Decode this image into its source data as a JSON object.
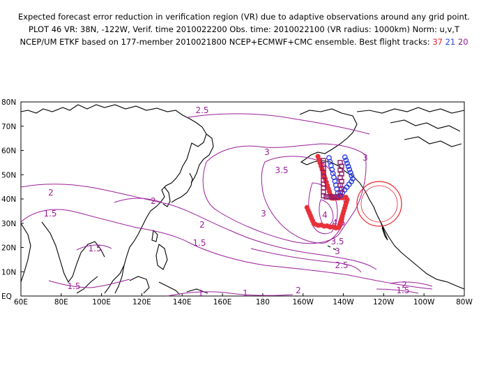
{
  "header": {
    "line1": "Expected forecast error reduction in verification region (VR) due to adaptive observations around any grid point.",
    "line2": "PLOT 46 VR: 38N, -122W, Verif. time 2010022200 Obs. time: 2010022100 (VR radius: 1000km) Norm: u,v,T",
    "line3_prefix": "NCEP/UM ETKF based on 177-member 2010021800 NCEP+ECMWF+CMC ensemble. Best flight tracks:",
    "track_red": "37",
    "track_blue": "21",
    "track_purple": "20"
  },
  "map": {
    "lat_labels": [
      "80N",
      "70N",
      "60N",
      "50N",
      "40N",
      "30N",
      "20N",
      "10N",
      "EQ"
    ],
    "lon_labels": [
      "60E",
      "80E",
      "100E",
      "120E",
      "140E",
      "160E",
      "180",
      "160W",
      "140W",
      "120W",
      "100W",
      "80W"
    ],
    "contour_labels": [
      "2.5",
      "3",
      "3.5",
      "3",
      "2",
      "2",
      "1.5",
      "2",
      "3",
      "1.5",
      "1.5",
      "3.5",
      "3",
      "2.5",
      "4",
      "4.5",
      "1.5",
      "1",
      "1",
      "2",
      "2",
      "1.5"
    ],
    "colors": {
      "contour": "#9a1e9a",
      "coast": "#000000",
      "vr_circle": "#e8202a",
      "track_red": "#e8303a",
      "track_blue": "#2a3fe0",
      "track_purple": "#8a1a6a"
    },
    "verification_region": {
      "lat": 38,
      "lon": -122
    }
  }
}
